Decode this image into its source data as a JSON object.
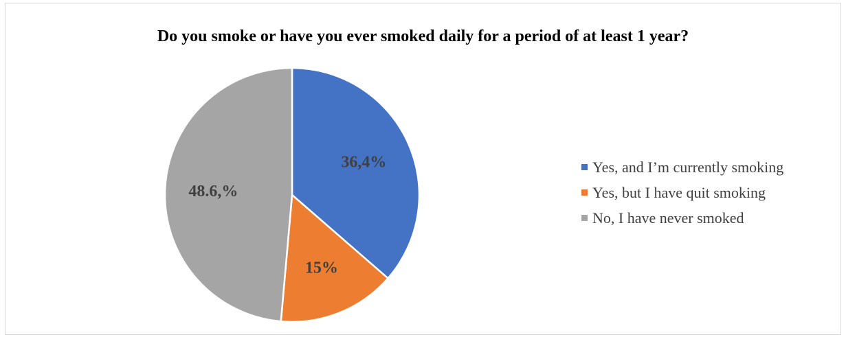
{
  "chart_data": {
    "type": "pie",
    "title": "Do you smoke or have you ever smoked daily for a period of at least 1 year?",
    "categories": [
      "Yes, and I’m currently smoking",
      "Yes, but I have quit smoking",
      "No, I have never smoked"
    ],
    "values": [
      36.4,
      15,
      48.6
    ],
    "data_labels": [
      "36,4%",
      "15%",
      "48.6,%"
    ],
    "colors": [
      "#4472c4",
      "#ed7d31",
      "#a5a5a5"
    ],
    "legend_position": "right",
    "start_angle": "top, clockwise"
  }
}
